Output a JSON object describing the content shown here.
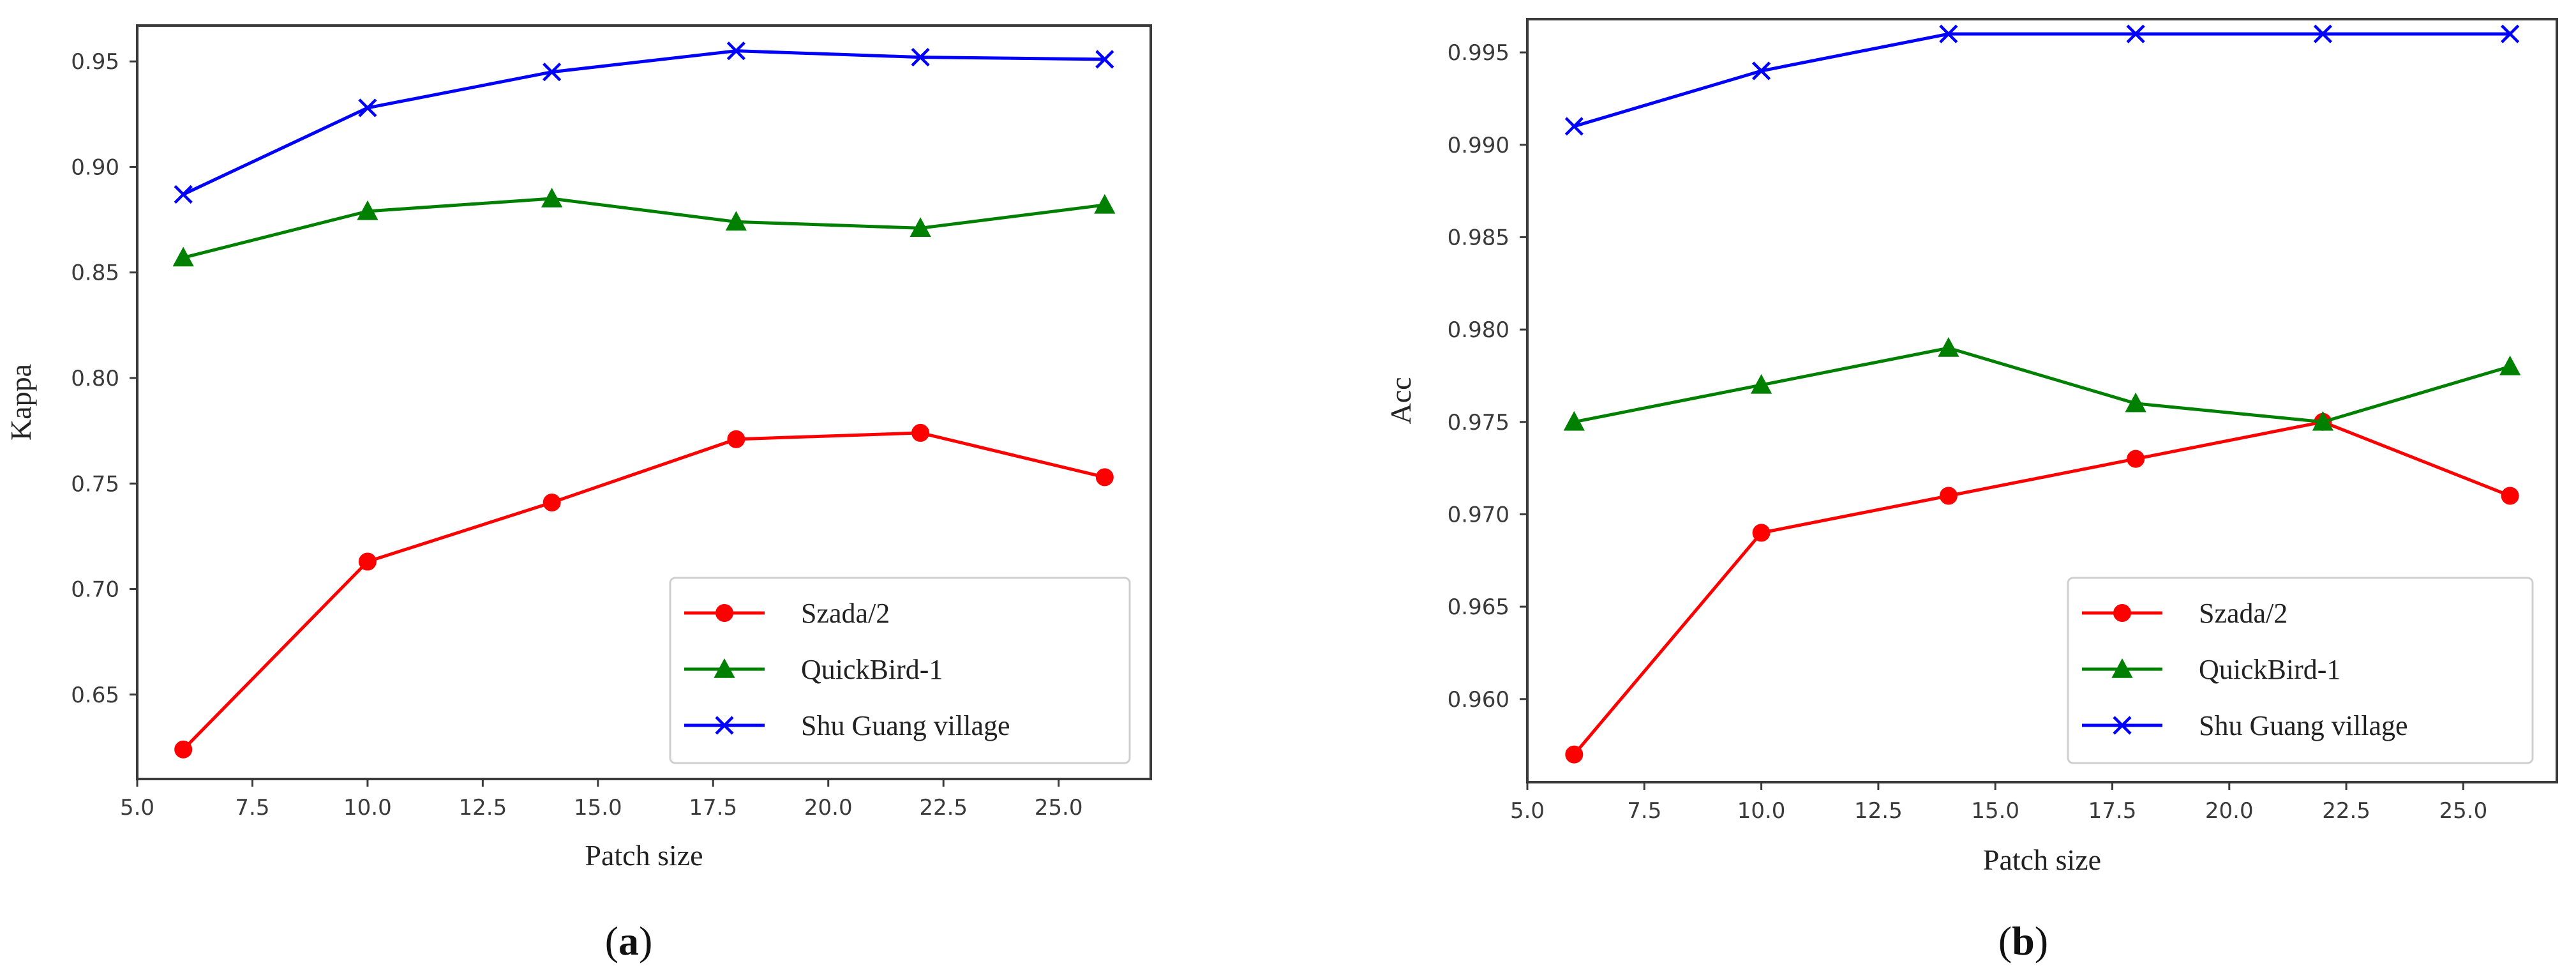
{
  "chart_data": [
    {
      "type": "line",
      "id": "a",
      "caption_letter": "a",
      "xlabel": "Patch size",
      "ylabel": "Kappa",
      "x": [
        6,
        10,
        14,
        18,
        22,
        26
      ],
      "xlim": [
        5.0,
        27.0
      ],
      "ylim": [
        0.61,
        0.967
      ],
      "xticks": [
        5.0,
        7.5,
        10.0,
        12.5,
        15.0,
        17.5,
        20.0,
        22.5,
        25.0
      ],
      "xtick_labels": [
        "5.0",
        "7.5",
        "10.0",
        "12.5",
        "15.0",
        "17.5",
        "20.0",
        "22.5",
        "25.0"
      ],
      "yticks": [
        0.65,
        0.7,
        0.75,
        0.8,
        0.85,
        0.9,
        0.95
      ],
      "ytick_labels": [
        "0.65",
        "0.70",
        "0.75",
        "0.80",
        "0.85",
        "0.90",
        "0.95"
      ],
      "grid": false,
      "legend_position": "lower-right",
      "series": [
        {
          "name": "Szada/2",
          "color": "#ff0000",
          "marker": "circle",
          "values": [
            0.624,
            0.713,
            0.741,
            0.771,
            0.774,
            0.753
          ]
        },
        {
          "name": "QuickBird-1",
          "color": "#008000",
          "marker": "triangle",
          "values": [
            0.857,
            0.879,
            0.885,
            0.874,
            0.871,
            0.882
          ]
        },
        {
          "name": "Shu Guang village",
          "color": "#0000ff",
          "marker": "x",
          "values": [
            0.887,
            0.928,
            0.945,
            0.955,
            0.952,
            0.951
          ]
        }
      ]
    },
    {
      "type": "line",
      "id": "b",
      "caption_letter": "b",
      "xlabel": "Patch size",
      "ylabel": "Acc",
      "x": [
        6,
        10,
        14,
        18,
        22,
        26
      ],
      "xlim": [
        5.0,
        27.0
      ],
      "ylim": [
        0.9555,
        0.9968
      ],
      "xticks": [
        5.0,
        7.5,
        10.0,
        12.5,
        15.0,
        17.5,
        20.0,
        22.5,
        25.0
      ],
      "xtick_labels": [
        "5.0",
        "7.5",
        "10.0",
        "12.5",
        "15.0",
        "17.5",
        "20.0",
        "22.5",
        "25.0"
      ],
      "yticks": [
        0.96,
        0.965,
        0.97,
        0.975,
        0.98,
        0.985,
        0.99,
        0.995
      ],
      "ytick_labels": [
        "0.960",
        "0.965",
        "0.970",
        "0.975",
        "0.980",
        "0.985",
        "0.990",
        "0.995"
      ],
      "grid": false,
      "legend_position": "lower-right",
      "series": [
        {
          "name": "Szada/2",
          "color": "#ff0000",
          "marker": "circle",
          "values": [
            0.957,
            0.969,
            0.971,
            0.973,
            0.975,
            0.971
          ]
        },
        {
          "name": "QuickBird-1",
          "color": "#008000",
          "marker": "triangle",
          "values": [
            0.975,
            0.977,
            0.979,
            0.976,
            0.975,
            0.978
          ]
        },
        {
          "name": "Shu Guang village",
          "color": "#0000ff",
          "marker": "x",
          "values": [
            0.991,
            0.994,
            0.996,
            0.996,
            0.996,
            0.996
          ]
        }
      ]
    }
  ]
}
